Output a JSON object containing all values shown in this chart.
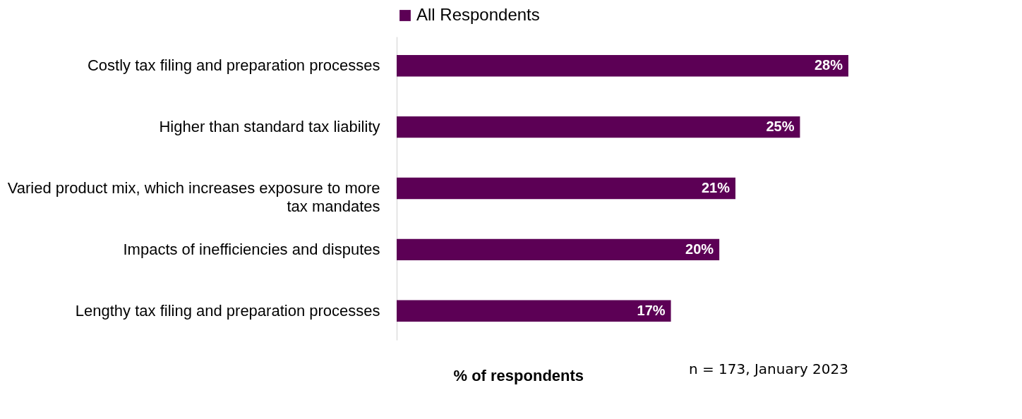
{
  "chart_data": {
    "type": "bar",
    "orientation": "horizontal",
    "xlabel": "% of respondents",
    "categories": [
      "Costly tax filing and preparation processes",
      "Higher than standard tax liability",
      "Varied product mix, which increases exposure to more tax mandates",
      "Impacts of inefficiencies and disputes",
      "Lengthy tax filing and preparation processes"
    ],
    "series": [
      {
        "name": "All Respondents",
        "color": "#5c0055",
        "values": [
          28,
          25,
          21,
          20,
          17
        ],
        "value_labels": [
          "28%",
          "25%",
          "21%",
          "20%",
          "17%"
        ]
      }
    ],
    "legend": "top",
    "grid": false,
    "annotations": [
      "n = 173, January 2023"
    ]
  }
}
